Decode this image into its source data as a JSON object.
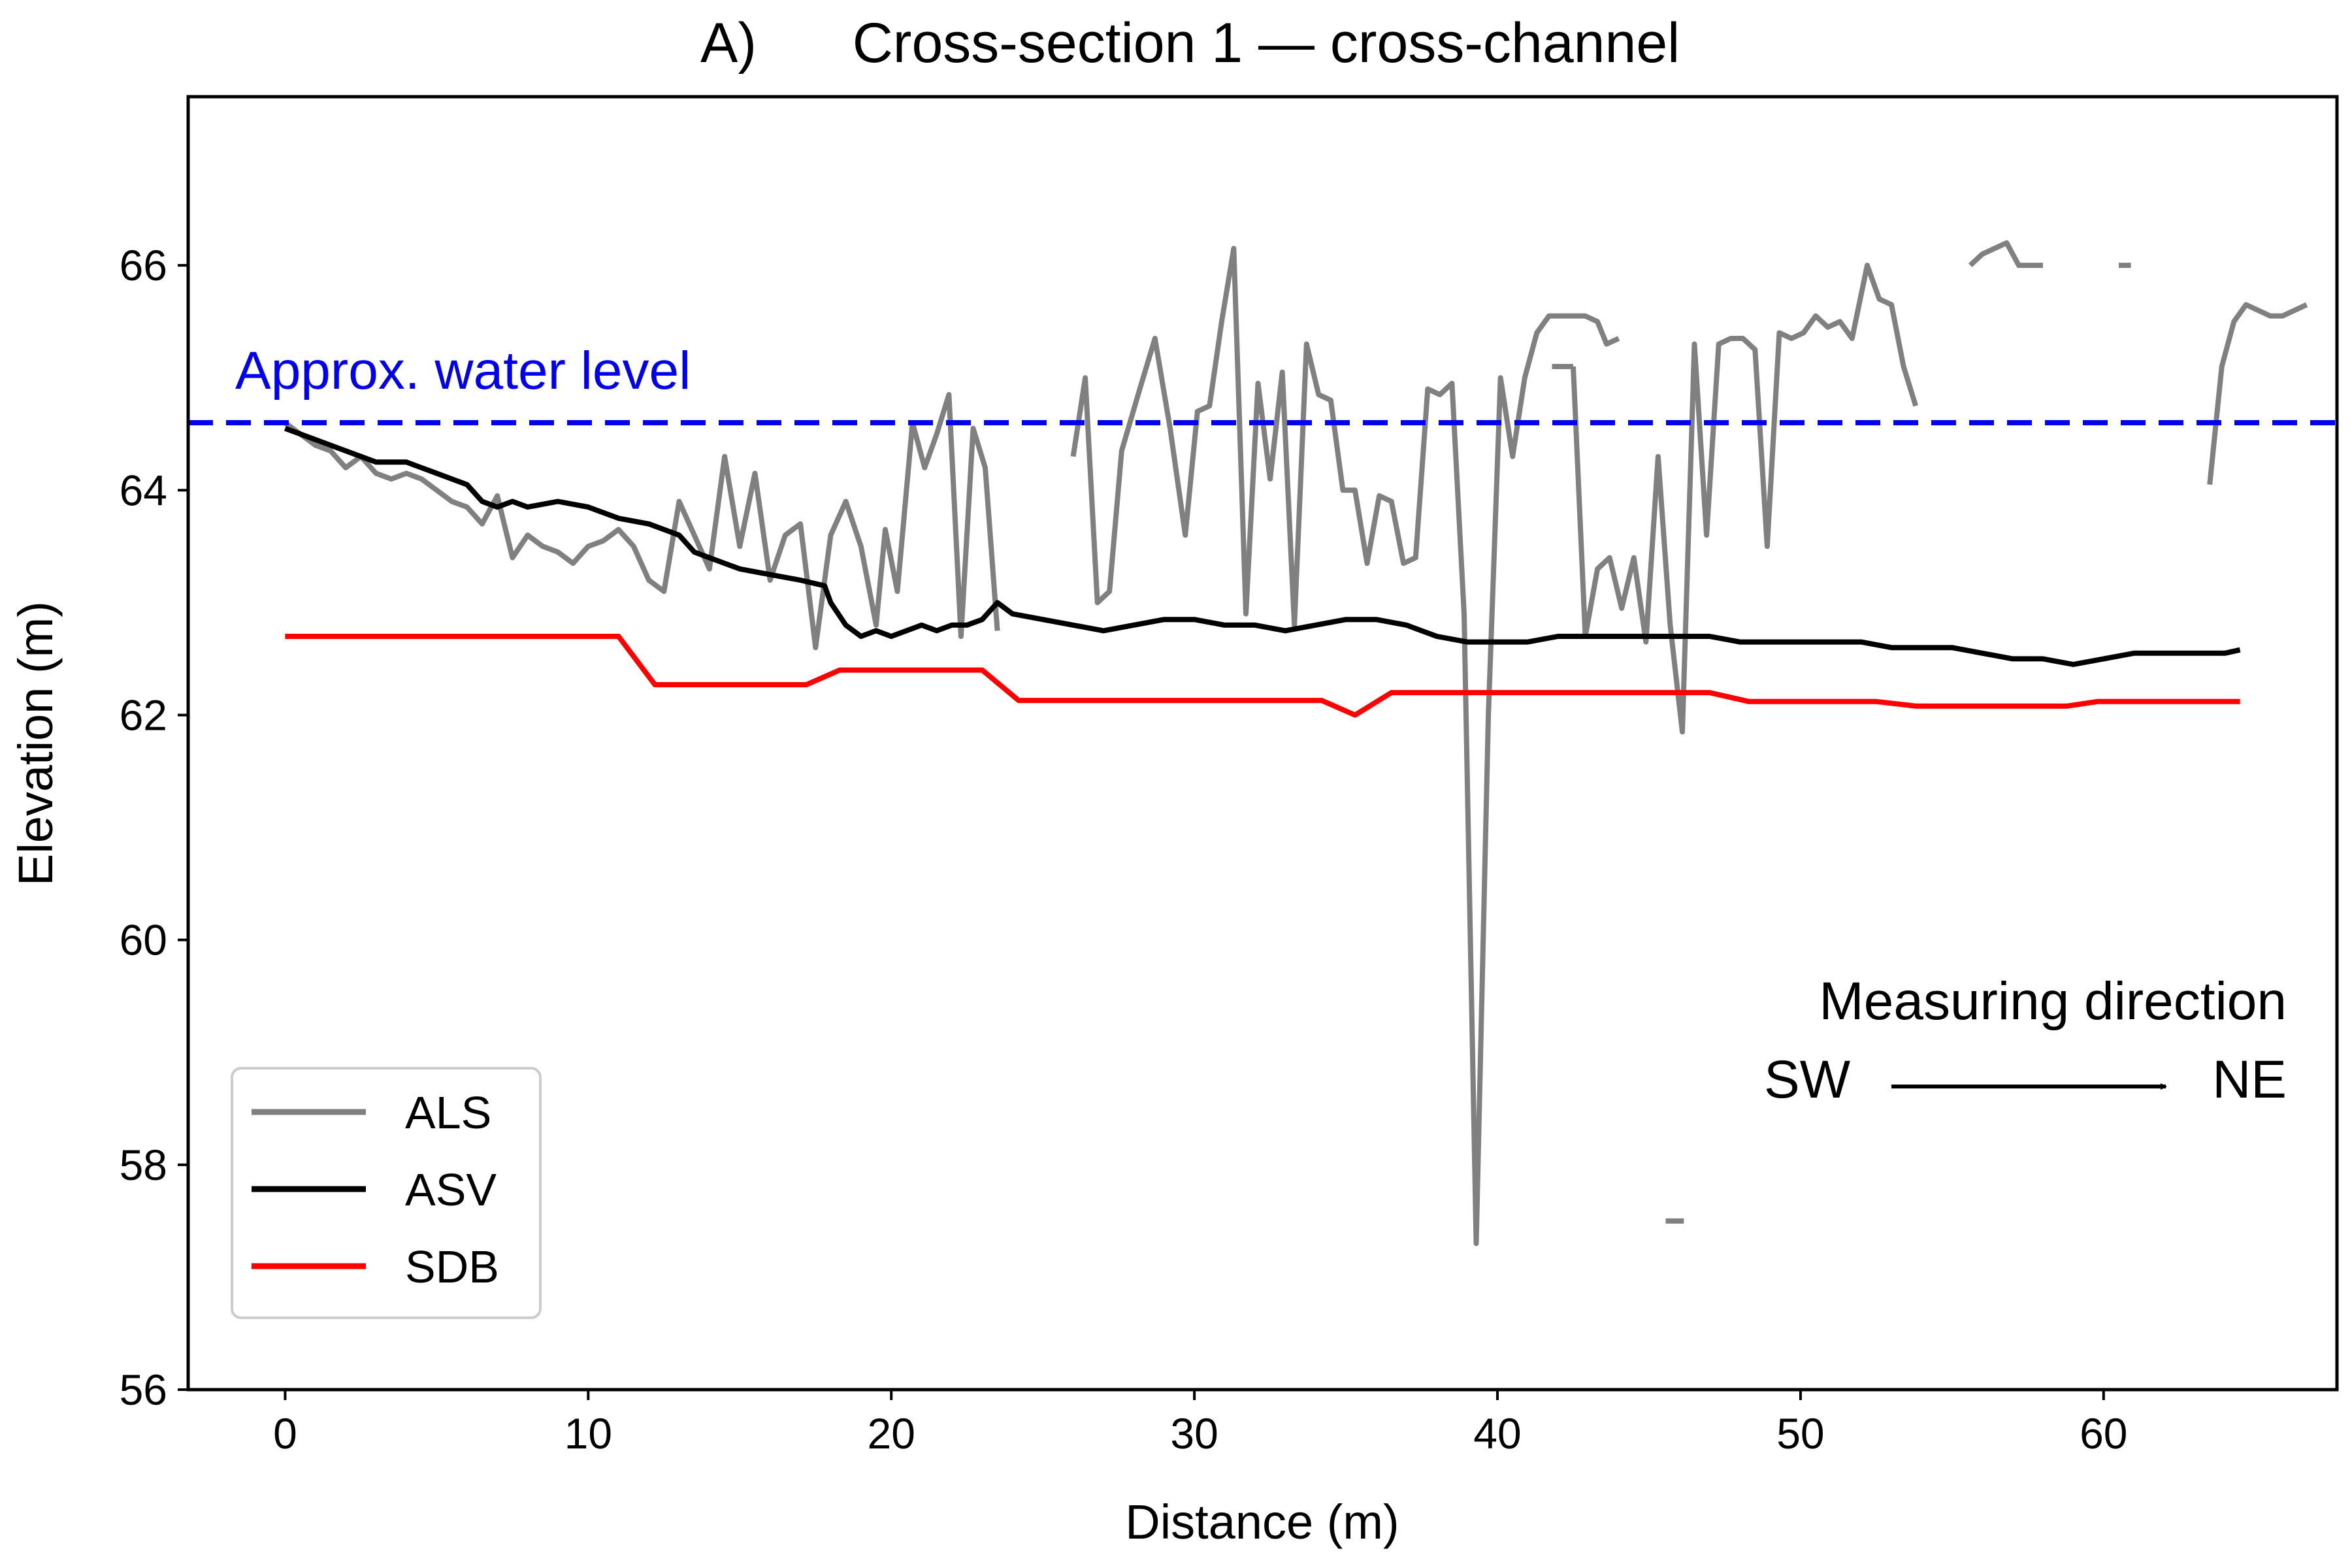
{
  "chart_data": {
    "type": "line",
    "panel_label": "A)",
    "title": "Cross-section 1 — cross-channel",
    "xlabel": "Distance (m)",
    "ylabel": "Elevation (m)",
    "xlim": [
      -3.2,
      67.7
    ],
    "ylim": [
      56,
      67.5
    ],
    "xticks": [
      0,
      10,
      20,
      30,
      40,
      50,
      60
    ],
    "yticks": [
      56,
      58,
      60,
      62,
      64,
      66
    ],
    "grid": false,
    "legend_position": "lower-left",
    "water_level": {
      "label": "Approx. water level",
      "value": 64.6,
      "color": "#0000ee",
      "style": "dashed"
    },
    "direction_annotation": {
      "title": "Measuring direction",
      "from": "SW",
      "to": "NE"
    },
    "series": [
      {
        "name": "ALS",
        "color": "#808080",
        "segments": [
          [
            [
              0,
              64.6
            ],
            [
              0.5,
              64.5
            ],
            [
              1,
              64.4
            ],
            [
              1.5,
              64.35
            ],
            [
              2,
              64.2
            ],
            [
              2.5,
              64.3
            ],
            [
              3,
              64.15
            ],
            [
              3.5,
              64.1
            ],
            [
              4,
              64.15
            ],
            [
              4.5,
              64.1
            ],
            [
              5,
              64.0
            ],
            [
              5.5,
              63.9
            ],
            [
              6,
              63.85
            ],
            [
              6.5,
              63.7
            ],
            [
              7,
              63.95
            ],
            [
              7.5,
              63.4
            ],
            [
              8,
              63.6
            ],
            [
              8.5,
              63.5
            ],
            [
              9,
              63.45
            ],
            [
              9.5,
              63.35
            ],
            [
              10,
              63.5
            ],
            [
              10.5,
              63.55
            ],
            [
              11,
              63.65
            ],
            [
              11.5,
              63.5
            ],
            [
              12,
              63.2
            ],
            [
              12.5,
              63.1
            ],
            [
              13,
              63.9
            ],
            [
              13.5,
              63.6
            ],
            [
              14,
              63.3
            ],
            [
              14.5,
              64.3
            ],
            [
              15,
              63.5
            ],
            [
              15.5,
              64.15
            ],
            [
              16,
              63.2
            ],
            [
              16.5,
              63.6
            ],
            [
              17,
              63.7
            ],
            [
              17.5,
              62.6
            ],
            [
              18,
              63.6
            ],
            [
              18.5,
              63.9
            ],
            [
              19,
              63.5
            ],
            [
              19.5,
              62.8
            ],
            [
              19.8,
              63.65
            ],
            [
              20.2,
              63.1
            ],
            [
              20.7,
              64.6
            ],
            [
              21.1,
              64.2
            ],
            [
              21.5,
              64.5
            ],
            [
              21.9,
              64.85
            ],
            [
              22.3,
              62.7
            ],
            [
              22.7,
              64.55
            ],
            [
              23.1,
              64.2
            ],
            [
              23.5,
              62.75
            ]
          ],
          [
            [
              26,
              64.3
            ],
            [
              26.4,
              65.0
            ],
            [
              26.8,
              63.0
            ],
            [
              27.2,
              63.1
            ],
            [
              27.6,
              64.35
            ],
            [
              28.2,
              64.9
            ],
            [
              28.7,
              65.35
            ],
            [
              29.2,
              64.55
            ],
            [
              29.7,
              63.6
            ],
            [
              30.1,
              64.7
            ],
            [
              30.5,
              64.75
            ],
            [
              30.9,
              65.5
            ],
            [
              31.3,
              66.15
            ],
            [
              31.7,
              62.9
            ],
            [
              32.1,
              64.95
            ],
            [
              32.5,
              64.1
            ],
            [
              32.9,
              65.05
            ],
            [
              33.3,
              62.8
            ],
            [
              33.7,
              65.3
            ],
            [
              34.1,
              64.85
            ],
            [
              34.5,
              64.8
            ],
            [
              34.9,
              64.0
            ],
            [
              35.3,
              64.0
            ],
            [
              35.7,
              63.35
            ],
            [
              36.1,
              63.95
            ],
            [
              36.5,
              63.9
            ],
            [
              36.9,
              63.35
            ],
            [
              37.3,
              63.4
            ],
            [
              37.7,
              64.9
            ],
            [
              38.1,
              64.85
            ],
            [
              38.5,
              64.95
            ],
            [
              38.9,
              62.9
            ],
            [
              39.3,
              57.3
            ],
            [
              39.7,
              62.0
            ],
            [
              40.1,
              65.0
            ],
            [
              40.5,
              64.3
            ],
            [
              40.9,
              65.0
            ],
            [
              41.3,
              65.4
            ],
            [
              41.7,
              65.55
            ],
            [
              42.3,
              65.55
            ],
            [
              42.9,
              65.55
            ],
            [
              43.3,
              65.5
            ],
            [
              43.6,
              65.3
            ],
            [
              44.0,
              65.35
            ]
          ],
          [
            [
              41.8,
              65.1
            ],
            [
              42.5,
              65.1
            ]
          ],
          [
            [
              42.5,
              65.1
            ],
            [
              42.9,
              62.7
            ],
            [
              43.3,
              63.3
            ],
            [
              43.7,
              63.4
            ],
            [
              44.1,
              62.95
            ],
            [
              44.5,
              63.4
            ],
            [
              44.9,
              62.65
            ],
            [
              45.3,
              64.3
            ],
            [
              45.7,
              62.8
            ],
            [
              46.1,
              61.85
            ],
            [
              46.5,
              65.3
            ],
            [
              46.9,
              63.6
            ],
            [
              47.3,
              65.3
            ],
            [
              47.7,
              65.35
            ],
            [
              48.1,
              65.35
            ],
            [
              48.5,
              65.25
            ],
            [
              48.9,
              63.5
            ],
            [
              49.3,
              65.4
            ],
            [
              49.7,
              65.35
            ],
            [
              50.1,
              65.4
            ],
            [
              50.5,
              65.55
            ],
            [
              50.9,
              65.45
            ],
            [
              51.3,
              65.5
            ],
            [
              51.7,
              65.35
            ],
            [
              52.2,
              66.0
            ],
            [
              52.6,
              65.7
            ],
            [
              53.0,
              65.65
            ],
            [
              53.4,
              65.1
            ],
            [
              53.8,
              64.75
            ]
          ],
          [
            [
              55.6,
              66.0
            ],
            [
              56.0,
              66.1
            ],
            [
              56.4,
              66.15
            ],
            [
              56.8,
              66.2
            ],
            [
              57.2,
              66.0
            ],
            [
              57.6,
              66.0
            ],
            [
              58.0,
              66.0
            ]
          ],
          [
            [
              60.5,
              66.0
            ],
            [
              60.9,
              66.0
            ]
          ],
          [
            [
              63.5,
              64.05
            ],
            [
              63.9,
              65.1
            ],
            [
              64.3,
              65.5
            ],
            [
              64.7,
              65.65
            ],
            [
              65.1,
              65.6
            ],
            [
              65.5,
              65.55
            ],
            [
              65.9,
              65.55
            ],
            [
              66.3,
              65.6
            ],
            [
              66.7,
              65.65
            ]
          ]
        ]
      },
      {
        "name": "ASV",
        "color": "#000000",
        "segments": [
          [
            [
              0,
              64.55
            ],
            [
              1,
              64.45
            ],
            [
              2,
              64.35
            ],
            [
              3,
              64.25
            ],
            [
              4,
              64.25
            ],
            [
              5,
              64.15
            ],
            [
              6,
              64.05
            ],
            [
              6.5,
              63.9
            ],
            [
              7,
              63.85
            ],
            [
              7.5,
              63.9
            ],
            [
              8,
              63.85
            ],
            [
              9,
              63.9
            ],
            [
              10,
              63.85
            ],
            [
              11,
              63.75
            ],
            [
              12,
              63.7
            ],
            [
              13,
              63.6
            ],
            [
              13.5,
              63.45
            ],
            [
              14,
              63.4
            ],
            [
              14.5,
              63.35
            ],
            [
              15,
              63.3
            ],
            [
              16,
              63.25
            ],
            [
              17,
              63.2
            ],
            [
              17.8,
              63.15
            ],
            [
              18,
              63.0
            ],
            [
              18.5,
              62.8
            ],
            [
              19,
              62.7
            ],
            [
              19.5,
              62.75
            ],
            [
              20,
              62.7
            ],
            [
              20.5,
              62.75
            ],
            [
              21,
              62.8
            ],
            [
              21.5,
              62.75
            ],
            [
              22,
              62.8
            ],
            [
              22.5,
              62.8
            ],
            [
              23,
              62.85
            ],
            [
              23.5,
              63.0
            ],
            [
              24,
              62.9
            ],
            [
              25,
              62.85
            ],
            [
              26,
              62.8
            ],
            [
              27,
              62.75
            ],
            [
              28,
              62.8
            ],
            [
              29,
              62.85
            ],
            [
              30,
              62.85
            ],
            [
              31,
              62.8
            ],
            [
              32,
              62.8
            ],
            [
              33,
              62.75
            ],
            [
              34,
              62.8
            ],
            [
              35,
              62.85
            ],
            [
              36,
              62.85
            ],
            [
              37,
              62.8
            ],
            [
              38,
              62.7
            ],
            [
              39,
              62.65
            ],
            [
              40,
              62.65
            ],
            [
              41,
              62.65
            ],
            [
              42,
              62.7
            ],
            [
              43,
              62.7
            ],
            [
              44,
              62.7
            ],
            [
              45,
              62.7
            ],
            [
              46,
              62.7
            ],
            [
              47,
              62.7
            ],
            [
              48,
              62.65
            ],
            [
              49,
              62.65
            ],
            [
              50,
              62.65
            ],
            [
              51,
              62.65
            ],
            [
              52,
              62.65
            ],
            [
              53,
              62.6
            ],
            [
              54,
              62.6
            ],
            [
              55,
              62.6
            ],
            [
              56,
              62.55
            ],
            [
              57,
              62.5
            ],
            [
              58,
              62.5
            ],
            [
              59,
              62.45
            ],
            [
              60,
              62.5
            ],
            [
              61,
              62.55
            ],
            [
              62,
              62.55
            ],
            [
              63,
              62.55
            ],
            [
              64,
              62.55
            ],
            [
              64.5,
              62.58
            ]
          ]
        ]
      },
      {
        "name": "SDB",
        "color": "#ff0000",
        "segments": [
          [
            [
              0,
              62.7
            ],
            [
              11,
              62.7
            ],
            [
              12.2,
              62.27
            ],
            [
              17.2,
              62.27
            ],
            [
              18.3,
              62.4
            ],
            [
              23,
              62.4
            ],
            [
              24.2,
              62.13
            ],
            [
              34.2,
              62.13
            ],
            [
              35.3,
              62.0
            ],
            [
              36.5,
              62.2
            ],
            [
              47,
              62.2
            ],
            [
              48.3,
              62.12
            ],
            [
              52.5,
              62.12
            ],
            [
              53.8,
              62.08
            ],
            [
              58.8,
              62.08
            ],
            [
              59.8,
              62.12
            ],
            [
              64.5,
              62.12
            ]
          ]
        ]
      }
    ]
  }
}
